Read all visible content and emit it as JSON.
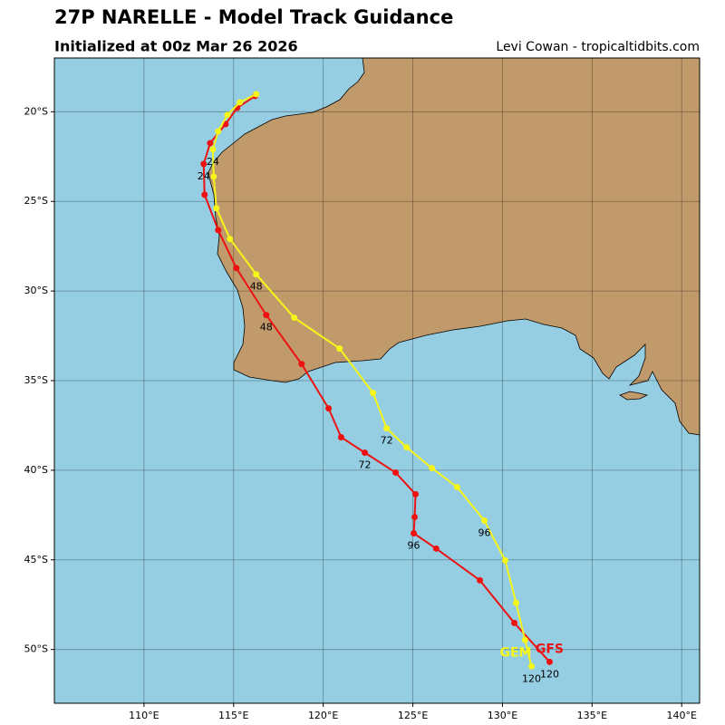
{
  "header": {
    "title": "27P NARELLE - Model Track Guidance",
    "subtitle": "Initialized at 00z Mar 26 2026",
    "credit": "Levi Cowan - tropicaltidbits.com"
  },
  "map": {
    "lon_range": [
      105,
      141
    ],
    "lat_range": [
      -17,
      -53
    ],
    "lon_ticks": [
      {
        "value": 110,
        "label": "110°E"
      },
      {
        "value": 115,
        "label": "115°E"
      },
      {
        "value": 120,
        "label": "120°E"
      },
      {
        "value": 125,
        "label": "125°E"
      },
      {
        "value": 130,
        "label": "130°E"
      },
      {
        "value": 135,
        "label": "135°E"
      },
      {
        "value": 140,
        "label": "140°E"
      }
    ],
    "lat_ticks": [
      {
        "value": -20,
        "label": "20°S"
      },
      {
        "value": -25,
        "label": "25°S"
      },
      {
        "value": -30,
        "label": "30°S"
      },
      {
        "value": -35,
        "label": "35°S"
      },
      {
        "value": -40,
        "label": "40°S"
      },
      {
        "value": -45,
        "label": "45°S"
      },
      {
        "value": -50,
        "label": "50°S"
      }
    ],
    "ocean_color": "#95cee2",
    "land_color": "#c19a6b",
    "tracks": [
      {
        "name": "GFS",
        "color": "#ee1111",
        "lon": [
          116.2,
          115.2,
          114.55,
          113.69,
          113.33,
          113.38,
          114.14,
          115.15,
          116.82,
          118.79,
          120.3,
          121.0,
          122.32,
          124.04,
          125.15,
          125.1,
          125.05,
          126.3,
          128.74,
          130.66,
          132.63
        ],
        "lat": [
          -19.12,
          -19.78,
          -20.69,
          -21.75,
          -22.91,
          -24.63,
          -26.6,
          -28.72,
          -31.34,
          -34.07,
          -36.55,
          -38.16,
          -39.02,
          -40.13,
          -41.34,
          -42.61,
          -43.52,
          -44.37,
          -46.14,
          -48.52,
          -50.69
        ],
        "hour_labels": [
          null,
          null,
          null,
          null,
          24,
          null,
          null,
          null,
          48,
          null,
          null,
          null,
          72,
          null,
          null,
          null,
          96,
          null,
          null,
          null,
          120
        ]
      },
      {
        "name": "GEM",
        "color": "#f5f51a",
        "lon": [
          116.26,
          115.35,
          114.65,
          114.14,
          113.84,
          113.89,
          114.04,
          114.8,
          116.26,
          118.38,
          120.91,
          122.78,
          123.54,
          124.65,
          126.06,
          127.47,
          128.99,
          130.15,
          130.76,
          131.26,
          131.62
        ],
        "lat": [
          -19.02,
          -19.47,
          -20.18,
          -21.09,
          -22.1,
          -23.62,
          -25.38,
          -27.1,
          -29.07,
          -31.49,
          -33.21,
          -35.69,
          -37.66,
          -38.72,
          -39.88,
          -40.94,
          -42.81,
          -45.03,
          -47.4,
          -49.47,
          -50.94
        ],
        "hour_labels": [
          null,
          null,
          null,
          null,
          24,
          null,
          null,
          null,
          48,
          null,
          null,
          null,
          72,
          null,
          null,
          null,
          96,
          null,
          null,
          null,
          120
        ]
      }
    ]
  }
}
